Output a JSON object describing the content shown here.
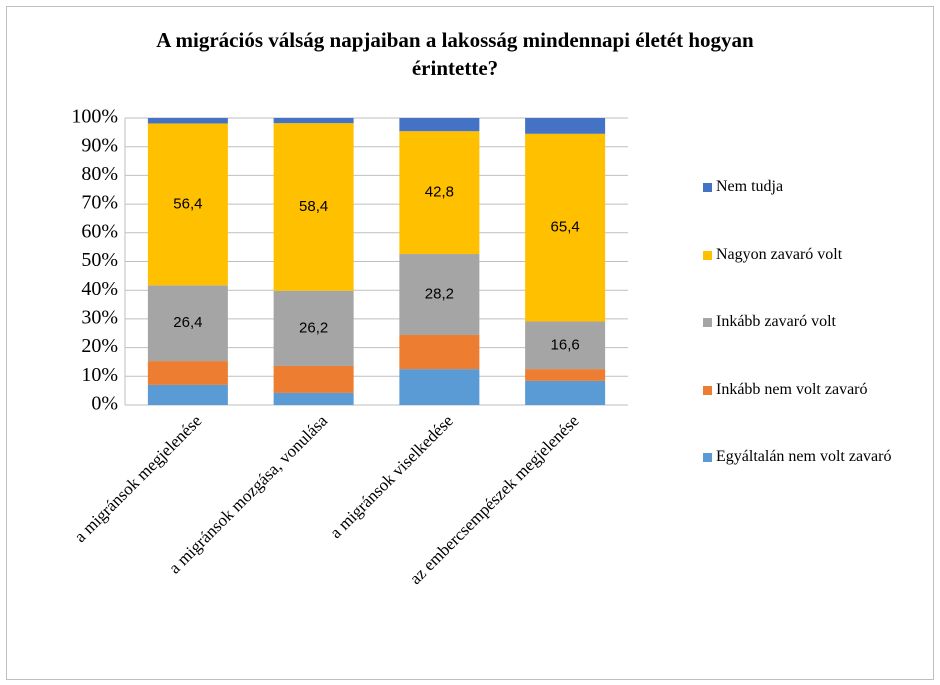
{
  "chart_data": {
    "type": "stacked_bar",
    "title": "A migrációs válság napjaiban a lakosság mindennapi életét hogyan érintette?",
    "categories": [
      "a migránsok megjelenése",
      "a migránsok mozgása, vonulása",
      "a migránsok viselkedése",
      "az embercsempészek megjelenése"
    ],
    "series": [
      {
        "name": "Egyáltalán nem volt zavaró",
        "color": "#5b9bd5",
        "values": [
          7,
          4.2,
          12.5,
          8.4
        ]
      },
      {
        "name": "Inkább nem volt zavaró",
        "color": "#ed7d31",
        "values": [
          8.3,
          9.4,
          11.9,
          4.1
        ]
      },
      {
        "name": "Inkább zavaró volt",
        "color": "#a5a5a5",
        "values": [
          26.4,
          26.2,
          28.2,
          16.6
        ],
        "value_labels": [
          "26,4",
          "26,2",
          "28,2",
          "16,6"
        ]
      },
      {
        "name": "Nagyon zavaró volt",
        "color": "#ffc000",
        "values": [
          56.4,
          58.4,
          42.8,
          65.4
        ],
        "value_labels": [
          "56,4",
          "58,4",
          "42,8",
          "65,4"
        ]
      },
      {
        "name": "Nem tudja",
        "color": "#4472c4",
        "values": [
          1.9,
          1.8,
          4.6,
          5.5
        ]
      }
    ],
    "ylim": [
      0,
      100
    ],
    "yticks": [
      {
        "value": 0,
        "label": "0%"
      },
      {
        "value": 10,
        "label": "10%"
      },
      {
        "value": 20,
        "label": "20%"
      },
      {
        "value": 30,
        "label": "30%"
      },
      {
        "value": 40,
        "label": "40%"
      },
      {
        "value": 50,
        "label": "50%"
      },
      {
        "value": 60,
        "label": "60%"
      },
      {
        "value": 70,
        "label": "70%"
      },
      {
        "value": 80,
        "label": "80%"
      },
      {
        "value": 90,
        "label": "90%"
      },
      {
        "value": 100,
        "label": "100%"
      }
    ],
    "grid": true,
    "legend": "right"
  }
}
